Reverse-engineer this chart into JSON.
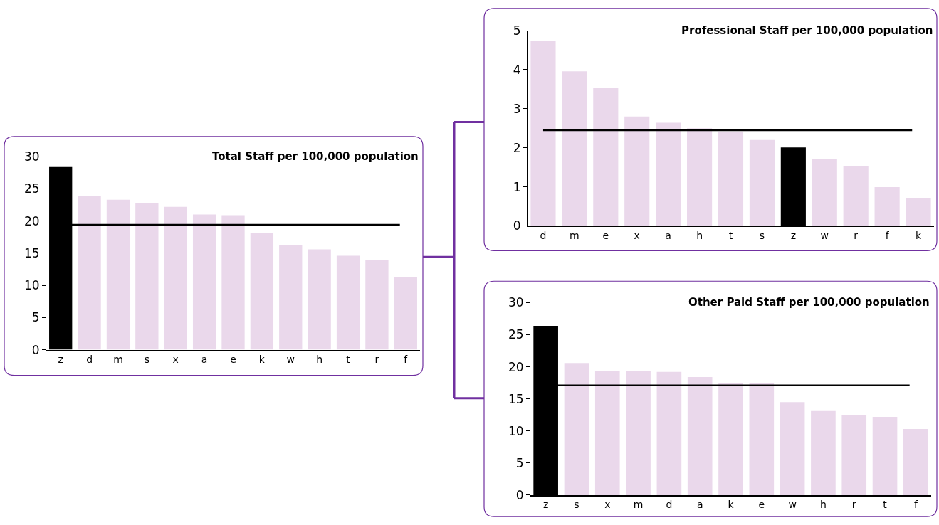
{
  "chart_data": [
    {
      "type": "bar",
      "title": "Total Staff per 100,000 population",
      "categories": [
        "z",
        "d",
        "m",
        "s",
        "x",
        "a",
        "e",
        "k",
        "w",
        "h",
        "t",
        "r",
        "f"
      ],
      "values": [
        28.4,
        23.9,
        23.3,
        22.8,
        22.2,
        21.0,
        20.9,
        18.2,
        16.2,
        15.6,
        14.6,
        13.9,
        11.3
      ],
      "colors": [
        "#000000",
        "#ead8eb",
        "#ead8eb",
        "#ead8eb",
        "#ead8eb",
        "#ead8eb",
        "#ead8eb",
        "#ead8eb",
        "#ead8eb",
        "#ead8eb",
        "#ead8eb",
        "#ead8eb",
        "#ead8eb"
      ],
      "ylim": [
        0,
        30
      ],
      "yticks": [
        0,
        5,
        10,
        15,
        20,
        25,
        30
      ],
      "ref_lines": [
        {
          "axis": "y",
          "value": 19.4,
          "color": "#000000"
        }
      ]
    },
    {
      "type": "bar",
      "title": "Professional Staff per 100,000 population",
      "categories": [
        "d",
        "m",
        "e",
        "x",
        "a",
        "h",
        "t",
        "s",
        "z",
        "w",
        "r",
        "f",
        "k"
      ],
      "values": [
        4.74,
        3.96,
        3.54,
        2.8,
        2.64,
        2.5,
        2.42,
        2.2,
        2.01,
        1.72,
        1.52,
        0.99,
        0.7
      ],
      "colors": [
        "#ead8eb",
        "#ead8eb",
        "#ead8eb",
        "#ead8eb",
        "#ead8eb",
        "#ead8eb",
        "#ead8eb",
        "#ead8eb",
        "#000000",
        "#ead8eb",
        "#ead8eb",
        "#ead8eb",
        "#ead8eb"
      ],
      "ylim": [
        0,
        5
      ],
      "yticks": [
        0,
        1,
        2,
        3,
        4,
        5
      ],
      "ref_lines": [
        {
          "axis": "y",
          "value": 2.45,
          "color": "#000000"
        }
      ]
    },
    {
      "type": "bar",
      "title": "Other Paid Staff per 100,000 population",
      "categories": [
        "z",
        "s",
        "x",
        "m",
        "d",
        "a",
        "k",
        "e",
        "w",
        "h",
        "r",
        "t",
        "f"
      ],
      "values": [
        26.4,
        20.6,
        19.4,
        19.4,
        19.2,
        18.4,
        17.5,
        17.4,
        14.5,
        13.1,
        12.5,
        12.2,
        10.3
      ],
      "colors": [
        "#000000",
        "#ead8eb",
        "#ead8eb",
        "#ead8eb",
        "#ead8eb",
        "#ead8eb",
        "#ead8eb",
        "#ead8eb",
        "#ead8eb",
        "#ead8eb",
        "#ead8eb",
        "#ead8eb",
        "#ead8eb"
      ],
      "ylim": [
        0,
        30
      ],
      "yticks": [
        0,
        5,
        10,
        15,
        20,
        25,
        30
      ],
      "ref_lines": [
        {
          "axis": "y",
          "value": 17.1,
          "color": "#000000"
        }
      ]
    }
  ]
}
